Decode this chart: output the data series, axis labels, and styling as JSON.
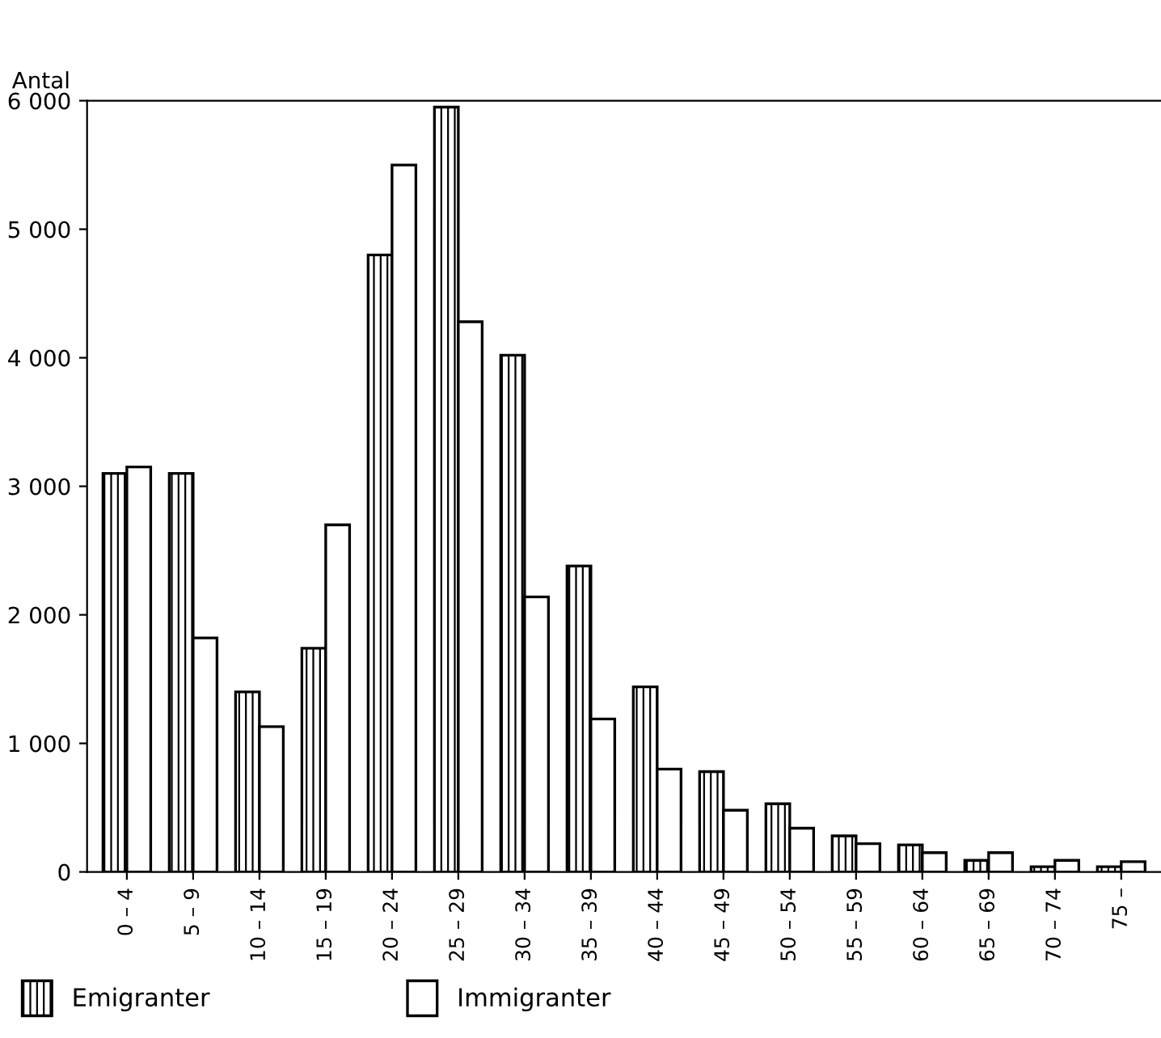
{
  "chart_data": {
    "type": "bar",
    "ylabel": "Antal",
    "categories": [
      "0 – 4",
      "5 – 9",
      "10 – 14",
      "15 – 19",
      "20 – 24",
      "25 – 29",
      "30 – 34",
      "35 – 39",
      "40 – 44",
      "45 – 49",
      "50 – 54",
      "55 – 59",
      "60 – 64",
      "65 – 69",
      "70 – 74",
      "75 –"
    ],
    "series": [
      {
        "name": "Emigranter",
        "color": "#000000",
        "values": [
          3100,
          3100,
          1400,
          1740,
          4800,
          5950,
          4020,
          2380,
          1440,
          780,
          530,
          280,
          210,
          90,
          40,
          40
        ]
      },
      {
        "name": "Immigranter",
        "color": "#ffffff",
        "values": [
          3150,
          1820,
          1130,
          2700,
          5500,
          4280,
          2140,
          1190,
          800,
          480,
          340,
          220,
          150,
          150,
          90,
          80
        ]
      }
    ],
    "ylim": [
      0,
      6000
    ],
    "yticks": [
      0,
      {
        "value": 1000,
        "label": "1 000"
      },
      {
        "value": 2000,
        "label": "2 000"
      },
      {
        "value": 3000,
        "label": "3 000"
      },
      {
        "value": 4000,
        "label": "4 000"
      },
      {
        "value": 5000,
        "label": "5 000"
      },
      {
        "value": 6000,
        "label": "6 000"
      }
    ],
    "grid": false,
    "legend": "bottom left"
  }
}
